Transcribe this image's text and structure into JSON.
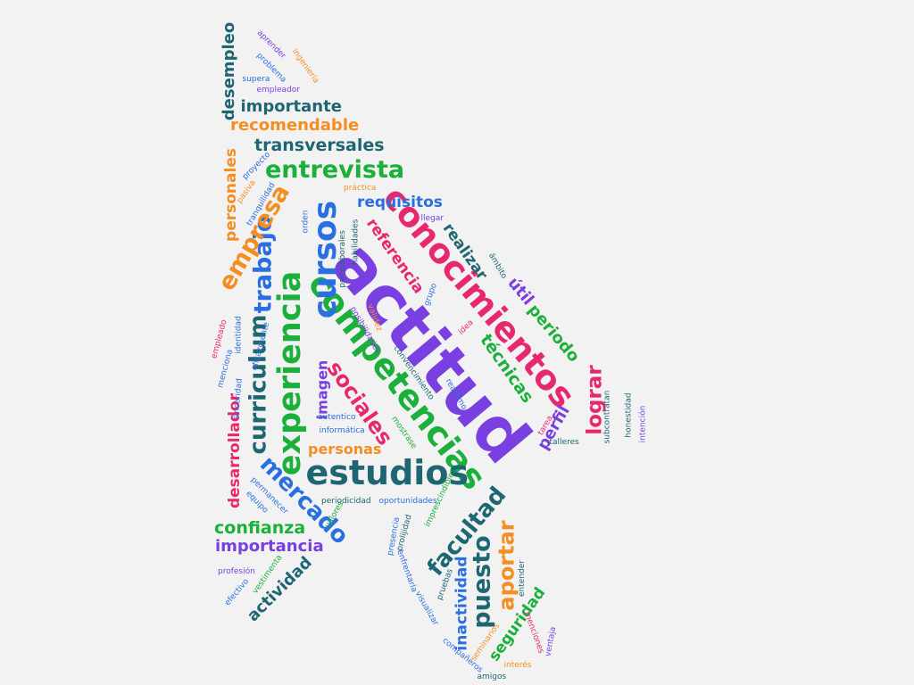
{
  "palette": {
    "purple": "#7a3fe0",
    "pink": "#e8286e",
    "green": "#1ab03a",
    "teal": "#1d6672",
    "blue": "#2a6fe0",
    "orange": "#f48e21"
  },
  "words": [
    {
      "text": "actitud",
      "color": "purple"
    },
    {
      "text": "conocimientos",
      "color": "pink"
    },
    {
      "text": "competencias",
      "color": "green"
    },
    {
      "text": "estudios",
      "color": "teal"
    },
    {
      "text": "experiencia",
      "color": "green"
    },
    {
      "text": "cursos",
      "color": "blue"
    },
    {
      "text": "entrevista",
      "color": "green"
    },
    {
      "text": "trabajo",
      "color": "blue"
    },
    {
      "text": "empresa",
      "color": "orange"
    },
    {
      "text": "curriculum",
      "color": "teal"
    },
    {
      "text": "sociales",
      "color": "pink"
    },
    {
      "text": "mercado",
      "color": "blue"
    },
    {
      "text": "facultad",
      "color": "teal"
    },
    {
      "text": "puesto",
      "color": "teal"
    },
    {
      "text": "aportar",
      "color": "orange"
    },
    {
      "text": "lograr",
      "color": "pink"
    },
    {
      "text": "técnicas",
      "color": "green"
    },
    {
      "text": "periodo",
      "color": "green"
    },
    {
      "text": "útil",
      "color": "purple"
    },
    {
      "text": "realizar",
      "color": "teal"
    },
    {
      "text": "referencia",
      "color": "pink"
    },
    {
      "text": "requisitos",
      "color": "blue"
    },
    {
      "text": "transversales",
      "color": "teal"
    },
    {
      "text": "recomendable",
      "color": "orange"
    },
    {
      "text": "importante",
      "color": "teal"
    },
    {
      "text": "desempleo",
      "color": "teal"
    },
    {
      "text": "personales",
      "color": "orange"
    },
    {
      "text": "desarrollador",
      "color": "pink"
    },
    {
      "text": "imagen",
      "color": "purple"
    },
    {
      "text": "personas",
      "color": "orange"
    },
    {
      "text": "confianza",
      "color": "green"
    },
    {
      "text": "importancia",
      "color": "purple"
    },
    {
      "text": "actividad",
      "color": "teal"
    },
    {
      "text": "seguridad",
      "color": "green"
    },
    {
      "text": "inactividad",
      "color": "blue"
    },
    {
      "text": "perfil",
      "color": "purple"
    },
    {
      "text": "aprender",
      "color": "purple"
    },
    {
      "text": "ingeniería",
      "color": "orange"
    },
    {
      "text": "problema",
      "color": "blue"
    },
    {
      "text": "supera",
      "color": "blue"
    },
    {
      "text": "empleador",
      "color": "purple"
    },
    {
      "text": "proyecto",
      "color": "blue"
    },
    {
      "text": "pasiva",
      "color": "orange"
    },
    {
      "text": "tranquilidad",
      "color": "blue"
    },
    {
      "text": "práctica",
      "color": "orange"
    },
    {
      "text": "llegar",
      "color": "purple"
    },
    {
      "text": "orden",
      "color": "blue"
    },
    {
      "text": "habilidades",
      "color": "teal"
    },
    {
      "text": "psicolaborales",
      "color": "teal"
    },
    {
      "text": "ámbito",
      "color": "teal"
    },
    {
      "text": "grupo",
      "color": "blue"
    },
    {
      "text": "validez",
      "color": "orange"
    },
    {
      "text": "posibilidades",
      "color": "purple"
    },
    {
      "text": "idea",
      "color": "pink"
    },
    {
      "text": "identidad",
      "color": "blue"
    },
    {
      "text": "empleado",
      "color": "pink"
    },
    {
      "text": "eficazmente",
      "color": "blue"
    },
    {
      "text": "menciona",
      "color": "blue"
    },
    {
      "text": "sinceridad",
      "color": "blue"
    },
    {
      "text": "convencimiento",
      "color": "teal"
    },
    {
      "text": "realismo",
      "color": "blue"
    },
    {
      "text": "autentico",
      "color": "blue"
    },
    {
      "text": "informática",
      "color": "blue"
    },
    {
      "text": "mostrase",
      "color": "green"
    },
    {
      "text": "tarea",
      "color": "pink"
    },
    {
      "text": "talleres",
      "color": "teal"
    },
    {
      "text": "subcontratan",
      "color": "teal"
    },
    {
      "text": "honestidad",
      "color": "teal"
    },
    {
      "text": "intención",
      "color": "purple"
    },
    {
      "text": "permanecer",
      "color": "blue"
    },
    {
      "text": "equipo",
      "color": "blue"
    },
    {
      "text": "valores",
      "color": "green"
    },
    {
      "text": "periodicidad",
      "color": "teal"
    },
    {
      "text": "oportunidades",
      "color": "blue"
    },
    {
      "text": "imprescindibles",
      "color": "green"
    },
    {
      "text": "presencia",
      "color": "blue"
    },
    {
      "text": "prolijidad",
      "color": "teal"
    },
    {
      "text": "profesión",
      "color": "purple"
    },
    {
      "text": "vestimenta",
      "color": "green"
    },
    {
      "text": "efectivo",
      "color": "blue"
    },
    {
      "text": "enfrentarla",
      "color": "blue"
    },
    {
      "text": "pruebas",
      "color": "teal"
    },
    {
      "text": "visualizar",
      "color": "blue"
    },
    {
      "text": "entender",
      "color": "teal"
    },
    {
      "text": "seminarios",
      "color": "orange"
    },
    {
      "text": "menciones",
      "color": "pink"
    },
    {
      "text": "ventaja",
      "color": "purple"
    },
    {
      "text": "compañeros",
      "color": "blue"
    },
    {
      "text": "interés",
      "color": "orange"
    },
    {
      "text": "amigos",
      "color": "teal"
    }
  ]
}
